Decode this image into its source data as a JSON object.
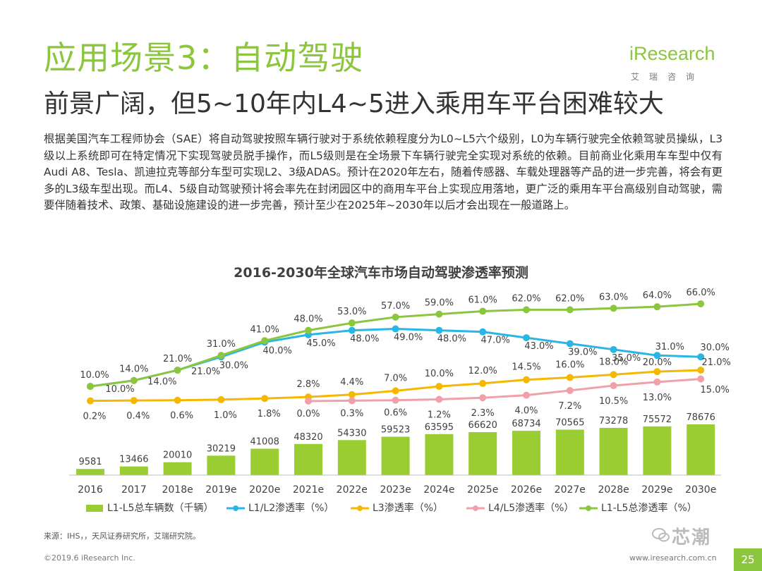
{
  "header": {
    "title": "应用场景3：自动驾驶",
    "subtitle": "前景广阔，但5~10年内L4~5进入乘用车平台困难较大",
    "logo_text": "iResearch",
    "logo_sub": "艾瑞咨询"
  },
  "paragraph": "根据美国汽车工程师协会（SAE）将自动驾驶按照车辆行驶对于系统依赖程度分为L0~L5六个级别，L0为车辆行驶完全依赖驾驶员操纵，L3级以上系统即可在特定情况下实现驾驶员脱手操作，而L5级则是在全场景下车辆行驶完全实现对系统的依赖。目前商业化乘用车车型中仅有Audi A8、Tesla、凯迪拉克等部分车型可实现L2、3级ADAS。预计在2020年左右，随着传感器、车载处理器等产品的进一步完善，将会有更多的L3级车型出现。而L4、5级自动驾驶预计将会率先在封闭园区中的商用车平台上实现应用落地，更广泛的乘用车平台高级别自动驾驶，需要伴随着技术、政策、基础设施建设的进一步完善，预计至少在2025年~2030年以后才会出现在一般道路上。",
  "chart_data": {
    "type": "bar+line",
    "title": "2016-2030年全球汽车市场自动驾驶渗透率预测",
    "categories": [
      "2016",
      "2017",
      "2018e",
      "2019e",
      "2020e",
      "2021e",
      "2022e",
      "2023e",
      "2024e",
      "2025e",
      "2026e",
      "2027e",
      "2028e",
      "2029e",
      "2030e"
    ],
    "bars": {
      "name": "L1-L5总车辆数（千辆）",
      "color": "#9acd32",
      "values": [
        9581,
        13466,
        20010,
        30219,
        41008,
        48320,
        54330,
        59523,
        63595,
        66620,
        68734,
        70565,
        73278,
        75572,
        78676
      ]
    },
    "series": [
      {
        "name": "L1/L2渗透率（%）",
        "color": "#2ab6e4",
        "values": [
          10.0,
          14.0,
          21.0,
          30.0,
          40.0,
          45.0,
          48.0,
          49.0,
          48.0,
          47.0,
          43.0,
          39.0,
          35.0,
          31.0,
          30.0
        ],
        "labels": [
          "10.0%",
          "14.0%",
          "21.0%",
          "30.0%",
          "40.0%",
          "45.0%",
          "48.0%",
          "49.0%",
          "48.0%",
          "47.0%",
          "43.0%",
          "39.0%",
          "35.0%",
          "31.0%",
          "30.0%"
        ]
      },
      {
        "name": "L3渗透率（%）",
        "color": "#f5b800",
        "values": [
          0.2,
          0.4,
          0.6,
          1.0,
          1.8,
          2.8,
          4.4,
          7.0,
          10.0,
          12.0,
          14.5,
          16.0,
          18.0,
          20.0,
          21.0
        ],
        "labels": [
          "0.2%",
          "0.4%",
          "0.6%",
          "1.0%",
          "1.8%",
          "2.8%",
          "4.4%",
          "7.0%",
          "10.0%",
          "12.0%",
          "14.5%",
          "16.0%",
          "18.0%",
          "20.0%",
          "21.0%"
        ]
      },
      {
        "name": "L4/L5渗透率（%）",
        "color": "#f0a0a8",
        "values": [
          null,
          null,
          null,
          null,
          null,
          0.0,
          0.3,
          0.6,
          1.2,
          2.3,
          4.0,
          7.2,
          10.5,
          13.0,
          15.0
        ],
        "labels": [
          "",
          "",
          "",
          "",
          "",
          "0.0%",
          "0.3%",
          "0.6%",
          "1.2%",
          "2.3%",
          "4.0%",
          "7.2%",
          "10.5%",
          "13.0%",
          "15.0%"
        ]
      },
      {
        "name": "L1-L5总渗透率（%）",
        "color": "#8cc63f",
        "values": [
          10.0,
          14.0,
          21.0,
          31.0,
          41.0,
          48.0,
          53.0,
          57.0,
          59.0,
          61.0,
          62.0,
          62.0,
          63.0,
          64.0,
          66.0
        ],
        "labels": [
          "10.0%",
          "14.0%",
          "21.0%",
          "31.0%",
          "41.0%",
          "48.0%",
          "53.0%",
          "57.0%",
          "59.0%",
          "61.0%",
          "62.0%",
          "62.0%",
          "63.0%",
          "64.0%",
          "66.0%"
        ]
      }
    ]
  },
  "legend": [
    {
      "label": "L1-L5总车辆数（千辆）",
      "kind": "bar",
      "color": "#9acd32"
    },
    {
      "label": "L1/L2渗透率（%）",
      "kind": "line",
      "color": "#2ab6e4"
    },
    {
      "label": "L3渗透率（%）",
      "kind": "line",
      "color": "#f5b800"
    },
    {
      "label": "L4/L5渗透率（%）",
      "kind": "line",
      "color": "#f0a0a8"
    },
    {
      "label": "L1-L5总渗透率（%）",
      "kind": "line",
      "color": "#8cc63f"
    }
  ],
  "footer": {
    "source": "来源：IHS，，天风证券研究所，艾瑞研究院。",
    "copyright": "©2019.6 iResearch Inc.",
    "website": "www.iresearch.com.cn",
    "page": "25",
    "watermark": "芯潮"
  }
}
